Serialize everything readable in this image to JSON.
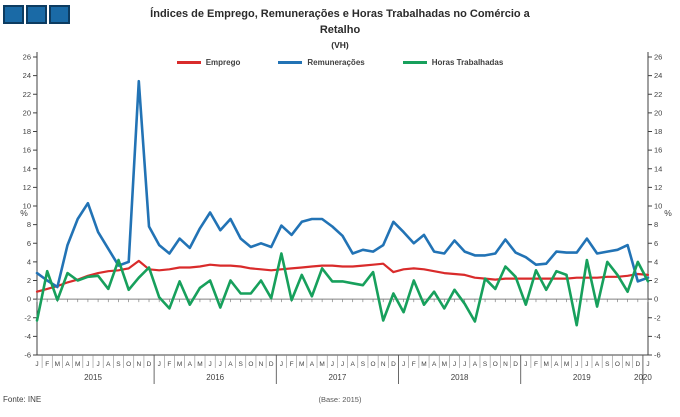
{
  "logo": {
    "square_count": 3,
    "fill": "#1a6aa6",
    "border": "#0d3c61"
  },
  "title": {
    "line1": "Índices de Emprego, Remunerações e Horas Trabalhadas no Comércio a",
    "line2": "Retalho",
    "subtitle": "(VH)"
  },
  "legend": [
    {
      "label": "Emprego",
      "color": "#D92B2B"
    },
    {
      "label": "Remunerações",
      "color": "#2273B5"
    },
    {
      "label": "Horas Trabalhadas",
      "color": "#17A05C"
    }
  ],
  "footer": {
    "source": "Fonte: INE",
    "x_caption": "(Base: 2015)"
  },
  "chart_data": {
    "type": "line",
    "title": "Índices de Emprego, Remunerações e Horas Trabalhadas no Comércio a Retalho (VH)",
    "frequency": "monthly",
    "x_start": "2015-01",
    "x_end": "2020-01",
    "month_letters": "JFMAMJJASOND",
    "year_labels": [
      "2015",
      "2016",
      "2017",
      "2018",
      "2019",
      "2020"
    ],
    "year_center_index": [
      5.5,
      17.5,
      29.5,
      41.5,
      53.5,
      59.5
    ],
    "ylim": [
      -6,
      26
    ],
    "ytick_step": 2,
    "ylabel_left": "%",
    "ylabel_right": "%",
    "grid": false,
    "zero_line": true,
    "legend_position": "top",
    "series": [
      {
        "name": "Emprego",
        "color": "#D92B2B",
        "width": 2.2,
        "values": [
          0.8,
          1.1,
          1.4,
          1.8,
          2.1,
          2.5,
          2.8,
          3.0,
          3.1,
          3.3,
          4.1,
          3.2,
          3.1,
          3.2,
          3.4,
          3.4,
          3.5,
          3.7,
          3.6,
          3.6,
          3.5,
          3.3,
          3.2,
          3.1,
          3.2,
          3.3,
          3.4,
          3.5,
          3.6,
          3.6,
          3.5,
          3.5,
          3.6,
          3.7,
          3.8,
          2.9,
          3.2,
          3.3,
          3.2,
          3.0,
          2.8,
          2.7,
          2.6,
          2.3,
          2.2,
          2.1,
          2.2,
          2.2,
          2.2,
          2.2,
          2.2,
          2.2,
          2.2,
          2.3,
          2.3,
          2.3,
          2.4,
          2.4,
          2.5,
          2.7,
          2.6
        ]
      },
      {
        "name": "Remunerações",
        "color": "#2273B5",
        "width": 2.6,
        "values": [
          2.8,
          2.0,
          1.3,
          5.8,
          8.6,
          10.3,
          7.2,
          5.4,
          3.6,
          4.0,
          23.4,
          7.8,
          5.8,
          4.9,
          6.5,
          5.5,
          7.6,
          9.3,
          7.4,
          8.6,
          6.5,
          5.6,
          6.0,
          5.6,
          7.9,
          6.9,
          8.3,
          8.6,
          8.6,
          7.8,
          6.8,
          4.9,
          5.3,
          5.1,
          5.8,
          8.3,
          7.2,
          6.0,
          6.9,
          5.1,
          4.9,
          6.3,
          5.1,
          4.7,
          4.7,
          4.9,
          6.4,
          5.0,
          4.5,
          3.7,
          3.8,
          5.1,
          5.0,
          5.0,
          6.5,
          4.9,
          5.1,
          5.3,
          5.8,
          1.9,
          2.3
        ]
      },
      {
        "name": "Horas Trabalhadas",
        "color": "#17A05C",
        "width": 2.6,
        "values": [
          -2.3,
          3.0,
          -0.1,
          2.8,
          2.0,
          2.4,
          2.5,
          1.1,
          4.2,
          1.0,
          2.3,
          3.4,
          0.2,
          -1.0,
          1.9,
          -0.6,
          1.2,
          2.0,
          -0.9,
          2.0,
          0.6,
          0.6,
          2.0,
          0.1,
          4.9,
          -0.1,
          2.6,
          0.3,
          3.3,
          1.9,
          1.9,
          1.7,
          1.5,
          2.9,
          -2.3,
          0.6,
          -1.4,
          2.0,
          -0.6,
          0.8,
          -1.0,
          1.0,
          -0.5,
          -2.4,
          2.2,
          1.1,
          3.5,
          2.4,
          -0.6,
          3.1,
          1.0,
          3.0,
          2.6,
          -2.8,
          4.2,
          -0.8,
          4.0,
          2.6,
          0.8,
          4.0,
          1.9
        ]
      }
    ]
  }
}
